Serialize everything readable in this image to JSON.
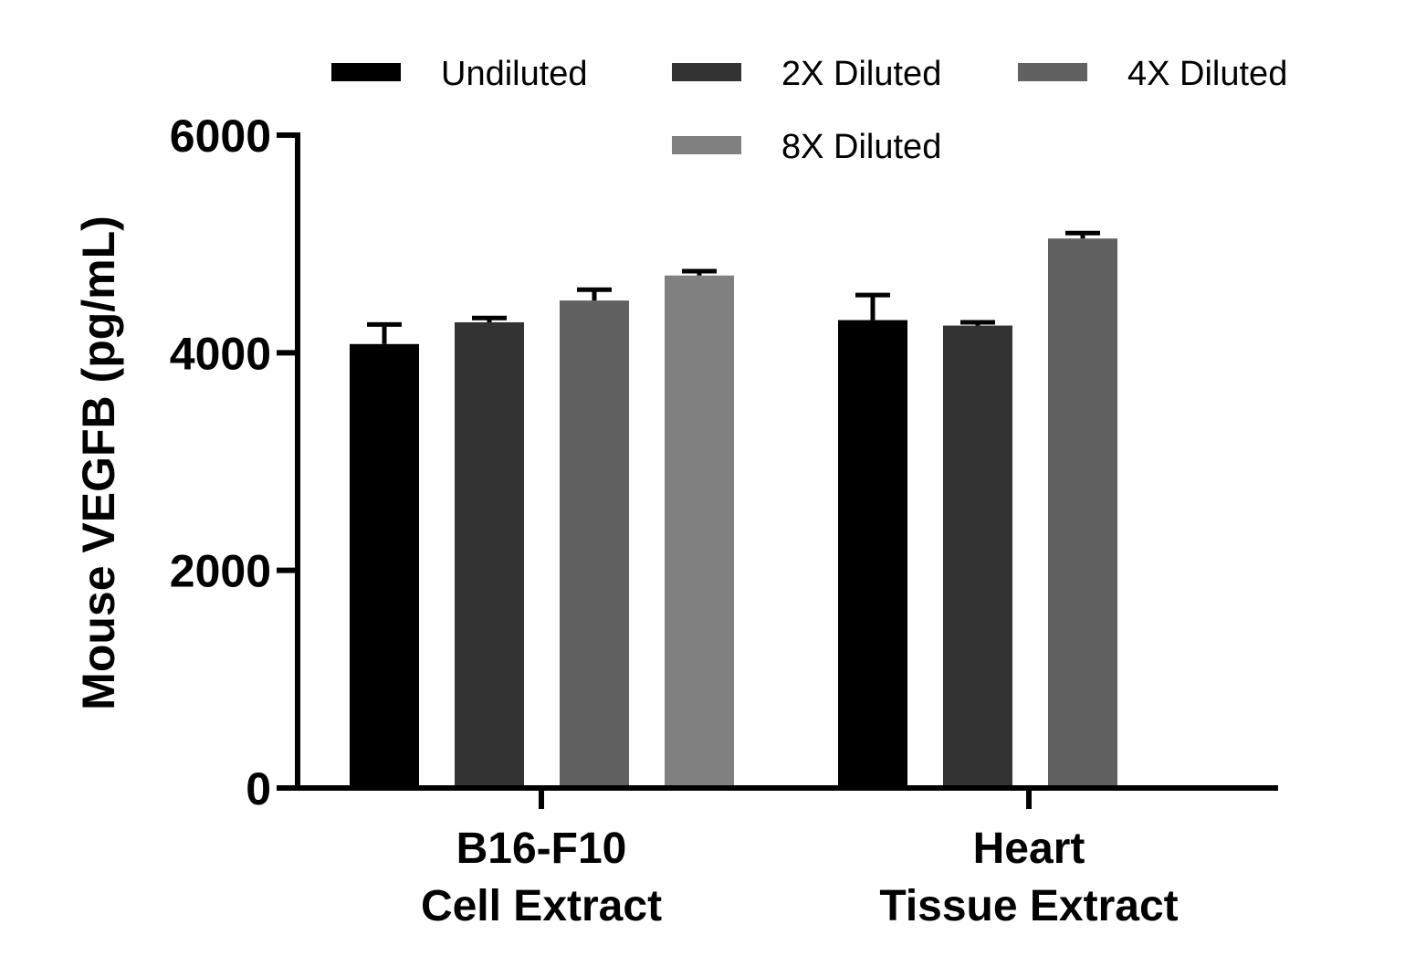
{
  "chart_data": {
    "type": "bar",
    "title": "",
    "xlabel": "",
    "ylabel": "Mouse VEGFB (pg/mL)",
    "ylim": [
      0,
      6000
    ],
    "yticks": [
      0,
      2000,
      4000,
      6000
    ],
    "grid": false,
    "legend_position": "top",
    "categories": [
      [
        "B16-F10",
        "Cell Extract"
      ],
      [
        "Heart",
        "Tissue Extract"
      ]
    ],
    "series": [
      {
        "name": "Undiluted",
        "color": "#000000",
        "values": [
          4080,
          4300
        ],
        "errors": [
          180,
          230
        ]
      },
      {
        "name": "2X Diluted",
        "color": "#333333",
        "values": [
          4280,
          4250
        ],
        "errors": [
          40,
          30
        ]
      },
      {
        "name": "4X Diluted",
        "color": "#616161",
        "values": [
          4480,
          5050
        ],
        "errors": [
          100,
          50
        ]
      },
      {
        "name": "8X Diluted",
        "color": "#808080",
        "values": [
          4710,
          null
        ],
        "errors": [
          40,
          null
        ]
      }
    ]
  }
}
